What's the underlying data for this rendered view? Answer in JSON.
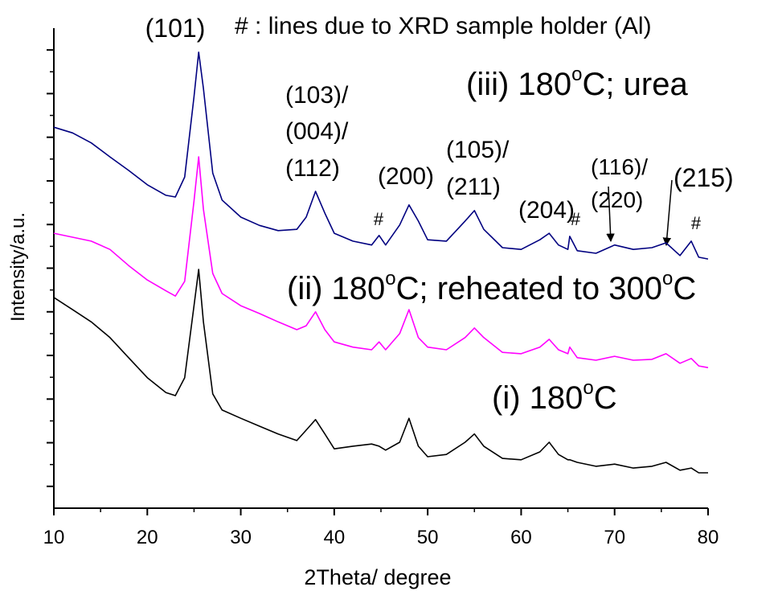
{
  "chart_data": {
    "type": "line",
    "x_label": "2Theta/ degree",
    "y_label": "Intensity/a.u.",
    "x": [
      10,
      12,
      14,
      16,
      18,
      20,
      22,
      23,
      24,
      25,
      25.5,
      26,
      27,
      28,
      30,
      32,
      34,
      36,
      37,
      38,
      39,
      40,
      42,
      44,
      44.8,
      45.5,
      47,
      48,
      49,
      50,
      52,
      54,
      55,
      56,
      58,
      60,
      62,
      63,
      64,
      65,
      65.2,
      66,
      68,
      70,
      72,
      74,
      75.5,
      77,
      78.2,
      79,
      80
    ],
    "series": [
      {
        "label": [
          "(iii) 180",
          "o",
          "C; urea"
        ],
        "color": "#000080",
        "values": [
          8.73,
          8.6,
          8.37,
          8.05,
          7.74,
          7.41,
          7.17,
          7.13,
          7.59,
          9.43,
          10.45,
          9.62,
          7.68,
          7.06,
          6.67,
          6.48,
          6.36,
          6.39,
          6.67,
          7.26,
          6.76,
          6.3,
          6.12,
          6.03,
          6.25,
          6.03,
          6.49,
          6.95,
          6.58,
          6.15,
          6.12,
          6.58,
          6.82,
          6.39,
          5.97,
          5.93,
          6.15,
          6.3,
          6.03,
          5.93,
          6.23,
          5.9,
          5.84,
          6.03,
          5.93,
          5.97,
          6.08,
          5.79,
          6.12,
          5.75,
          5.71
        ]
      },
      {
        "label": [
          "(ii) 180",
          "o",
          "C; reheated to 300",
          "o",
          "C"
        ],
        "color": "#ff00ff",
        "values": [
          6.3,
          6.21,
          6.12,
          5.93,
          5.56,
          5.23,
          4.98,
          4.86,
          5.2,
          7.04,
          8.05,
          6.85,
          5.38,
          4.92,
          4.64,
          4.46,
          4.27,
          4.09,
          4.18,
          4.5,
          4.09,
          3.81,
          3.69,
          3.63,
          3.81,
          3.63,
          4.0,
          4.55,
          3.91,
          3.69,
          3.63,
          3.91,
          4.13,
          3.91,
          3.57,
          3.54,
          3.69,
          3.87,
          3.63,
          3.54,
          3.69,
          3.45,
          3.39,
          3.48,
          3.39,
          3.41,
          3.54,
          3.32,
          3.43,
          3.26,
          3.22
        ]
      },
      {
        "label": [
          "(i) 180",
          "o",
          "C"
        ],
        "color": "#000000",
        "values": [
          4.83,
          4.55,
          4.27,
          3.91,
          3.45,
          2.99,
          2.65,
          2.58,
          2.99,
          4.64,
          5.47,
          4.27,
          2.62,
          2.25,
          2.06,
          1.88,
          1.7,
          1.55,
          1.79,
          2.03,
          1.7,
          1.36,
          1.42,
          1.47,
          1.42,
          1.33,
          1.51,
          2.06,
          1.42,
          1.18,
          1.23,
          1.51,
          1.7,
          1.42,
          1.14,
          1.11,
          1.29,
          1.51,
          1.23,
          1.11,
          1.11,
          1.05,
          0.96,
          1.01,
          0.92,
          0.96,
          1.05,
          0.87,
          0.92,
          0.81,
          0.81
        ]
      }
    ],
    "annotations": [
      "(101)",
      "# : lines due to XRD sample holder (Al)",
      "(103)/",
      "(004)/",
      "(112)",
      "(200)",
      "(105)/",
      "(211)",
      "(204)",
      "(116)/",
      "(220)",
      "(215)",
      "#",
      "#",
      "#"
    ],
    "xlim": [
      10,
      80
    ],
    "xticks": [
      10,
      20,
      30,
      40,
      50,
      60,
      70,
      80
    ],
    "xminorticks": [
      15,
      25,
      35,
      45,
      55,
      65,
      75
    ],
    "ylim": [
      0,
      11
    ],
    "yticks": [
      0.5,
      1.5,
      2.5,
      3.5,
      4.5,
      5.5,
      6.5,
      7.5,
      8.5,
      9.5,
      10.5
    ],
    "yminorticks": [
      1,
      2,
      3,
      4,
      5,
      6,
      7,
      8,
      9,
      10
    ]
  }
}
